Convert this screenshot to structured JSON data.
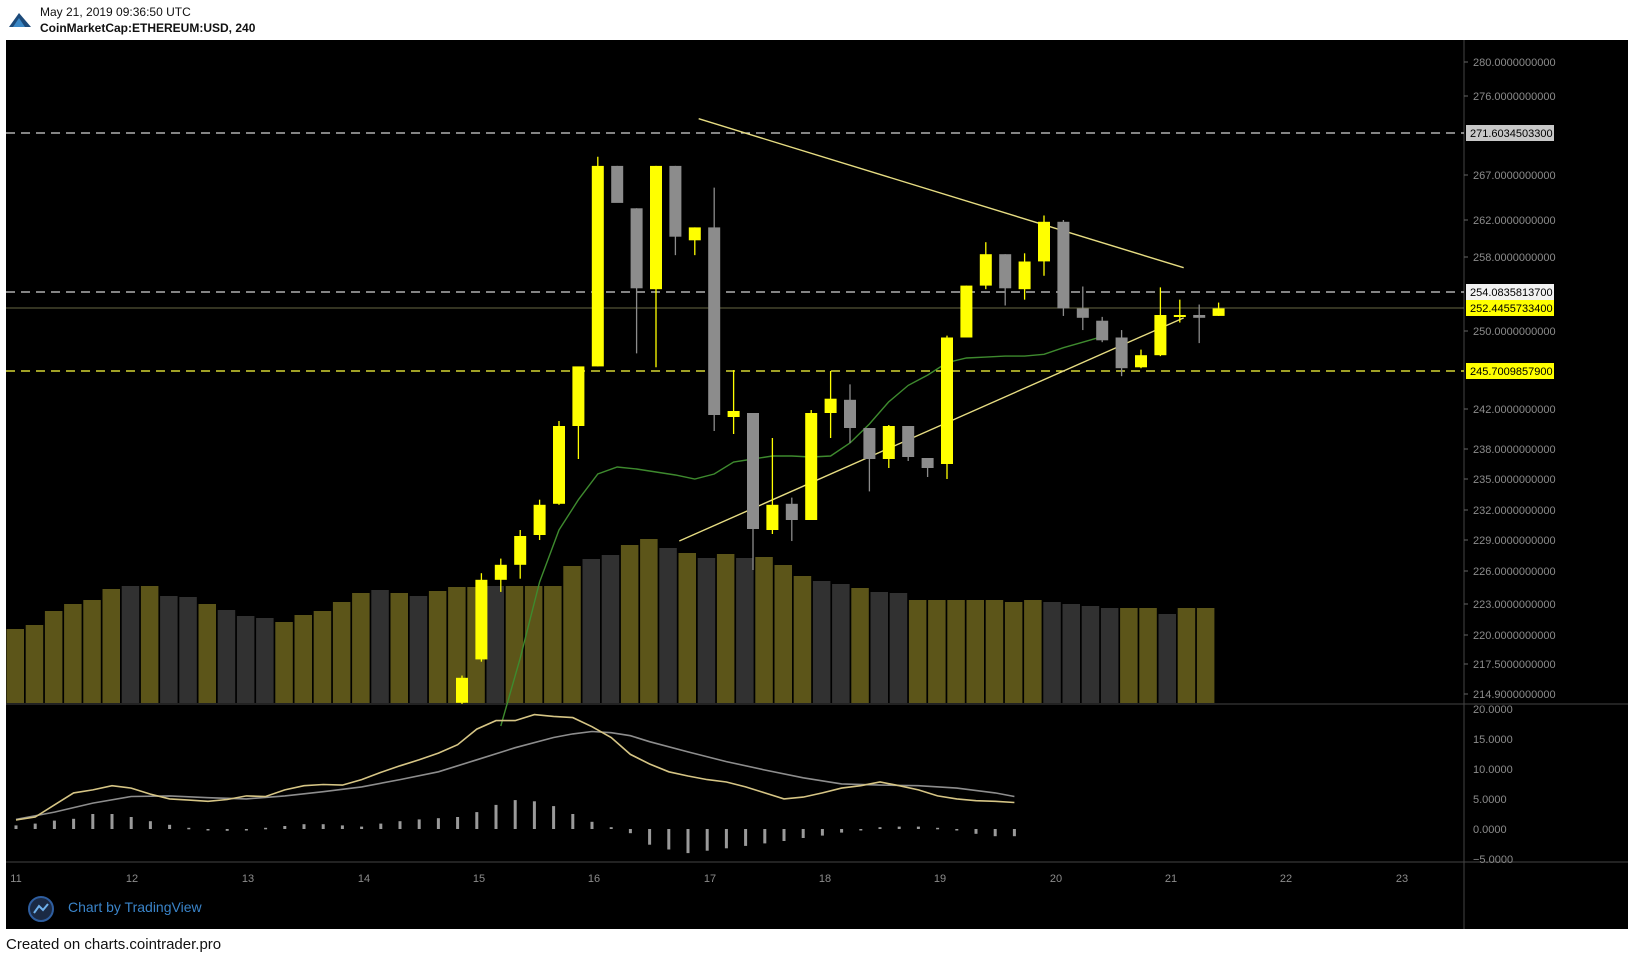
{
  "header": {
    "timestamp": "May 21, 2019 09:36:50 UTC",
    "symbol": "CoinMarketCap:ETHEREUM:USD, 240"
  },
  "footer": {
    "text": "Created on charts.cointrader.pro"
  },
  "watermark": {
    "text": "Chart by TradingView",
    "icon": "tradingview-logo-icon"
  },
  "colors": {
    "background": "#000000",
    "bull": "#ffff00",
    "bear": "#8c8c8c",
    "volume_bull": "#5c5519",
    "volume_bear": "#313131",
    "ma_line": "#3e8a2e",
    "trendline": "#e6dc82",
    "macd_line": "#d6c585",
    "signal_line": "#8d8d8d",
    "dashed_line": "#d2d2d2",
    "dashed_line_yellow": "#ffff3c"
  },
  "chart_data": {
    "type": "candlestick",
    "x": {
      "ticks": [
        "11",
        "12",
        "13",
        "14",
        "15",
        "16",
        "17",
        "18",
        "19",
        "20",
        "21",
        "22",
        "23"
      ]
    },
    "price_axis": {
      "ticks": [
        "280.0000000000",
        "276.0000000000",
        "267.0000000000",
        "262.0000000000",
        "258.0000000000",
        "254.0835813700",
        "252.4455733400",
        "250.0000000000",
        "245.7009857900",
        "242.0000000000",
        "238.0000000000",
        "235.0000000000",
        "232.0000000000",
        "229.0000000000",
        "226.0000000000",
        "223.0000000000",
        "220.0000000000",
        "217.5000000000",
        "214.9000000000"
      ],
      "labels": [
        {
          "text": "271.6034503300",
          "style": "gray"
        },
        {
          "text": "254.0835813700",
          "style": "white"
        },
        {
          "text": "252.4455733400",
          "style": "yellow"
        },
        {
          "text": "245.7009857900",
          "style": "yellow"
        }
      ]
    },
    "macd_axis": {
      "ticks": [
        "20.0000",
        "15.0000",
        "10.0000",
        "5.0000",
        "0.0000",
        "−5.0000"
      ]
    },
    "candles": [
      {
        "o": 214.1,
        "h": 216.5,
        "l": 214.0,
        "c": 216.3
      },
      {
        "o": 217.9,
        "h": 225.8,
        "l": 217.7,
        "c": 225.2
      },
      {
        "o": 225.2,
        "h": 227.2,
        "l": 224.1,
        "c": 226.6
      },
      {
        "o": 226.6,
        "h": 230.0,
        "l": 225.3,
        "c": 229.4
      },
      {
        "o": 229.5,
        "h": 233.0,
        "l": 229.0,
        "c": 232.5
      },
      {
        "o": 232.6,
        "h": 240.8,
        "l": 232.5,
        "c": 240.3
      },
      {
        "o": 240.3,
        "h": 245.8,
        "l": 237.0,
        "c": 246.2
      },
      {
        "o": 246.2,
        "h": 269.0,
        "l": 246.2,
        "c": 268.0
      },
      {
        "o": 268.0,
        "h": 268.0,
        "l": 264.2,
        "c": 263.9
      },
      {
        "o": 263.3,
        "h": 263.3,
        "l": 247.6,
        "c": 254.5
      },
      {
        "o": 254.4,
        "h": 268.0,
        "l": 246.1,
        "c": 268.0
      },
      {
        "o": 268.0,
        "h": 268.0,
        "l": 258.2,
        "c": 260.2
      },
      {
        "o": 259.8,
        "h": 261.2,
        "l": 258.2,
        "c": 261.2
      },
      {
        "o": 261.2,
        "h": 265.6,
        "l": 239.8,
        "c": 241.4
      },
      {
        "o": 241.2,
        "h": 245.8,
        "l": 239.5,
        "c": 241.8
      },
      {
        "o": 241.6,
        "h": 241.6,
        "l": 226.1,
        "c": 230.1
      },
      {
        "o": 230.0,
        "h": 239.1,
        "l": 229.6,
        "c": 232.5
      },
      {
        "o": 232.6,
        "h": 233.2,
        "l": 228.9,
        "c": 231.0
      },
      {
        "o": 231.0,
        "h": 241.9,
        "l": 231.0,
        "c": 241.6
      },
      {
        "o": 241.6,
        "h": 245.7,
        "l": 239.1,
        "c": 243.0
      },
      {
        "o": 242.9,
        "h": 244.4,
        "l": 238.6,
        "c": 240.1
      },
      {
        "o": 240.1,
        "h": 240.1,
        "l": 233.8,
        "c": 237.0
      },
      {
        "o": 237.0,
        "h": 240.4,
        "l": 236.1,
        "c": 240.3
      },
      {
        "o": 240.3,
        "h": 240.3,
        "l": 236.8,
        "c": 237.2
      },
      {
        "o": 237.1,
        "h": 237.1,
        "l": 235.2,
        "c": 236.1
      },
      {
        "o": 236.5,
        "h": 249.5,
        "l": 235.0,
        "c": 249.3
      },
      {
        "o": 249.3,
        "h": 254.8,
        "l": 249.3,
        "c": 254.8
      },
      {
        "o": 254.8,
        "h": 259.6,
        "l": 254.4,
        "c": 258.3
      },
      {
        "o": 258.3,
        "h": 258.3,
        "l": 252.7,
        "c": 254.5
      },
      {
        "o": 254.4,
        "h": 258.4,
        "l": 253.3,
        "c": 257.5
      },
      {
        "o": 257.5,
        "h": 262.5,
        "l": 255.9,
        "c": 261.8
      },
      {
        "o": 261.8,
        "h": 262.0,
        "l": 251.6,
        "c": 252.4
      },
      {
        "o": 252.4,
        "h": 254.7,
        "l": 250.1,
        "c": 251.4
      },
      {
        "o": 251.1,
        "h": 251.5,
        "l": 248.8,
        "c": 249.0
      },
      {
        "o": 249.3,
        "h": 250.1,
        "l": 245.2,
        "c": 246.0
      },
      {
        "o": 246.1,
        "h": 248.0,
        "l": 246.0,
        "c": 247.4
      },
      {
        "o": 247.4,
        "h": 254.6,
        "l": 247.3,
        "c": 251.7
      },
      {
        "o": 251.5,
        "h": 253.3,
        "l": 250.9,
        "c": 251.7
      },
      {
        "o": 251.7,
        "h": 252.8,
        "l": 248.7,
        "c": 251.4
      },
      {
        "o": 251.6,
        "h": 253.0,
        "l": 251.6,
        "c": 252.4
      }
    ],
    "volume": [
      {
        "v": 74,
        "up": true
      },
      {
        "v": 78,
        "up": true
      },
      {
        "v": 92,
        "up": true
      },
      {
        "v": 99,
        "up": true
      },
      {
        "v": 103,
        "up": true
      },
      {
        "v": 114,
        "up": true
      },
      {
        "v": 117,
        "up": false
      },
      {
        "v": 117,
        "up": true
      },
      {
        "v": 107,
        "up": false
      },
      {
        "v": 106,
        "up": false
      },
      {
        "v": 99,
        "up": true
      },
      {
        "v": 93,
        "up": false
      },
      {
        "v": 87,
        "up": false
      },
      {
        "v": 85,
        "up": false
      },
      {
        "v": 81,
        "up": true
      },
      {
        "v": 88,
        "up": true
      },
      {
        "v": 92,
        "up": true
      },
      {
        "v": 101,
        "up": true
      },
      {
        "v": 110,
        "up": true
      },
      {
        "v": 113,
        "up": false
      },
      {
        "v": 110,
        "up": true
      },
      {
        "v": 107,
        "up": false
      },
      {
        "v": 112,
        "up": true
      },
      {
        "v": 116,
        "up": true
      },
      {
        "v": 116,
        "up": true
      },
      {
        "v": 117,
        "up": false
      },
      {
        "v": 117,
        "up": true
      },
      {
        "v": 117,
        "up": true
      },
      {
        "v": 117,
        "up": true
      },
      {
        "v": 137,
        "up": true
      },
      {
        "v": 144,
        "up": false
      },
      {
        "v": 148,
        "up": false
      },
      {
        "v": 158,
        "up": true
      },
      {
        "v": 164,
        "up": true
      },
      {
        "v": 155,
        "up": false
      },
      {
        "v": 150,
        "up": true
      },
      {
        "v": 145,
        "up": false
      },
      {
        "v": 149,
        "up": true
      },
      {
        "v": 145,
        "up": false
      },
      {
        "v": 146,
        "up": true
      },
      {
        "v": 138,
        "up": true
      },
      {
        "v": 127,
        "up": true
      },
      {
        "v": 122,
        "up": false
      },
      {
        "v": 119,
        "up": false
      },
      {
        "v": 115,
        "up": true
      },
      {
        "v": 111,
        "up": false
      },
      {
        "v": 110,
        "up": false
      },
      {
        "v": 103,
        "up": true
      },
      {
        "v": 103,
        "up": true
      },
      {
        "v": 103,
        "up": true
      },
      {
        "v": 103,
        "up": true
      },
      {
        "v": 103,
        "up": true
      },
      {
        "v": 101,
        "up": true
      },
      {
        "v": 103,
        "up": true
      },
      {
        "v": 101,
        "up": false
      },
      {
        "v": 99,
        "up": false
      },
      {
        "v": 97,
        "up": false
      },
      {
        "v": 95,
        "up": false
      },
      {
        "v": 95,
        "up": true
      },
      {
        "v": 95,
        "up": true
      },
      {
        "v": 89,
        "up": false
      },
      {
        "v": 95,
        "up": true
      },
      {
        "v": 95,
        "up": true
      }
    ],
    "ma": [
      [
        2,
        212.0
      ],
      [
        3,
        218.0
      ],
      [
        4,
        225.0
      ],
      [
        5,
        230.0
      ],
      [
        6,
        233.0
      ],
      [
        7,
        235.5
      ],
      [
        8,
        236.2
      ],
      [
        9,
        236.0
      ],
      [
        10,
        235.7
      ],
      [
        11,
        235.4
      ],
      [
        12,
        235.0
      ],
      [
        13,
        235.5
      ],
      [
        14,
        236.7
      ],
      [
        15,
        237.0
      ],
      [
        16,
        237.3
      ],
      [
        17,
        237.3
      ],
      [
        18,
        237.2
      ],
      [
        19,
        237.3
      ],
      [
        20,
        238.6
      ],
      [
        21,
        240.5
      ],
      [
        22,
        242.7
      ],
      [
        23,
        244.3
      ],
      [
        24,
        245.3
      ],
      [
        25,
        246.6
      ],
      [
        26,
        247.1
      ],
      [
        27,
        247.2
      ],
      [
        28,
        247.3
      ],
      [
        29,
        247.3
      ],
      [
        30,
        247.5
      ],
      [
        31,
        248.2
      ],
      [
        32,
        248.8
      ],
      [
        33,
        249.4
      ]
    ],
    "trendlines": [
      {
        "x0": 12.2,
        "y0": 273.3,
        "x1": 37.2,
        "y1": 256.8
      },
      {
        "x0": 11.2,
        "y0": 228.9,
        "x1": 37.2,
        "y1": 251.4
      }
    ],
    "macd": [
      [
        0,
        1.5
      ],
      [
        1,
        2.0
      ],
      [
        2,
        4.0
      ],
      [
        3,
        6.0
      ],
      [
        4,
        6.5
      ],
      [
        5,
        7.2
      ],
      [
        6,
        6.8
      ],
      [
        7,
        5.8
      ],
      [
        8,
        5.0
      ],
      [
        9,
        4.8
      ],
      [
        10,
        4.6
      ],
      [
        11,
        4.9
      ],
      [
        12,
        5.5
      ],
      [
        13,
        5.4
      ],
      [
        14,
        6.5
      ],
      [
        15,
        7.2
      ],
      [
        16,
        7.4
      ],
      [
        17,
        7.3
      ],
      [
        18,
        8.2
      ],
      [
        19,
        9.4
      ],
      [
        20,
        10.5
      ],
      [
        21,
        11.5
      ],
      [
        22,
        12.6
      ],
      [
        23,
        14.0
      ],
      [
        24,
        16.6
      ],
      [
        25,
        18.0
      ],
      [
        26,
        18.0
      ],
      [
        27,
        19.0
      ],
      [
        28,
        18.7
      ],
      [
        29,
        18.5
      ],
      [
        30,
        17.0
      ],
      [
        31,
        15.2
      ],
      [
        32,
        12.4
      ],
      [
        33,
        10.8
      ],
      [
        34,
        9.5
      ],
      [
        35,
        8.8
      ],
      [
        36,
        8.2
      ],
      [
        37,
        7.8
      ],
      [
        38,
        7.0
      ],
      [
        39,
        6.0
      ],
      [
        40,
        5.0
      ],
      [
        41,
        5.3
      ],
      [
        42,
        6.0
      ],
      [
        43,
        6.8
      ],
      [
        44,
        7.2
      ],
      [
        45,
        7.8
      ],
      [
        46,
        7.2
      ],
      [
        47,
        6.5
      ],
      [
        48,
        5.5
      ],
      [
        49,
        5.0
      ],
      [
        50,
        4.7
      ],
      [
        51,
        4.6
      ],
      [
        52,
        4.4
      ]
    ],
    "signal": [
      [
        0,
        1.6
      ],
      [
        2,
        2.8
      ],
      [
        4,
        4.3
      ],
      [
        6,
        5.4
      ],
      [
        8,
        5.5
      ],
      [
        10,
        5.2
      ],
      [
        12,
        5.0
      ],
      [
        14,
        5.5
      ],
      [
        16,
        6.2
      ],
      [
        18,
        7.0
      ],
      [
        20,
        8.2
      ],
      [
        22,
        9.5
      ],
      [
        24,
        11.5
      ],
      [
        26,
        13.5
      ],
      [
        28,
        15.2
      ],
      [
        29,
        15.8
      ],
      [
        30,
        16.2
      ],
      [
        31,
        16.0
      ],
      [
        32,
        15.5
      ],
      [
        33,
        14.5
      ],
      [
        35,
        12.8
      ],
      [
        37,
        11.2
      ],
      [
        39,
        9.8
      ],
      [
        41,
        8.5
      ],
      [
        43,
        7.5
      ],
      [
        45,
        7.3
      ],
      [
        47,
        7.2
      ],
      [
        49,
        6.8
      ],
      [
        51,
        6.0
      ],
      [
        52,
        5.4
      ]
    ],
    "histogram": [
      0.6,
      0.9,
      1.4,
      1.7,
      2.5,
      2.5,
      2.0,
      1.3,
      0.7,
      0.2,
      -0.2,
      -0.3,
      -0.2,
      0.2,
      0.5,
      0.8,
      0.8,
      0.6,
      0.4,
      0.9,
      1.3,
      1.6,
      1.8,
      2.0,
      2.8,
      4.0,
      4.8,
      4.6,
      3.8,
      2.5,
      1.2,
      0.3,
      -0.7,
      -2.6,
      -3.4,
      -4.0,
      -3.6,
      -3.2,
      -2.8,
      -2.4,
      -2.0,
      -1.5,
      -1.1,
      -0.6,
      -0.1,
      0.3,
      0.4,
      0.4,
      0.2,
      -0.2,
      -0.8,
      -1.2,
      -1.2
    ]
  }
}
